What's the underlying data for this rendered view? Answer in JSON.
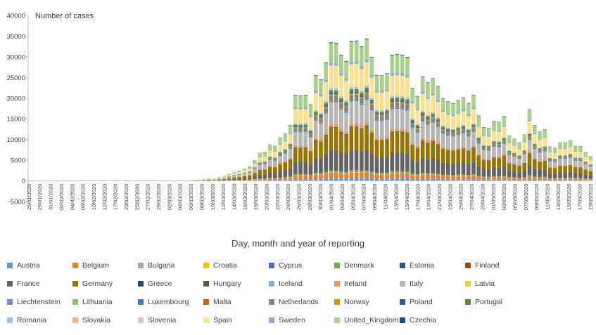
{
  "chart_data": {
    "type": "bar",
    "stacked": true,
    "ylabel": "Number of cases",
    "xlabel": "Day, month and year of reporting",
    "ylim": [
      -5000,
      40000
    ],
    "yticks": [
      "-5000",
      "0",
      "5000",
      "10000",
      "15000",
      "20000",
      "25000",
      "30000",
      "35000",
      "40000"
    ],
    "grid": false,
    "legend_position": "bottom",
    "x_tick_labels": [
      "25/01/2020",
      "29/01/2020",
      "31/01/2020",
      "02/02/2020",
      "04/02/2020",
      "08/02/2020",
      "10/02/2020",
      "12/02/2020",
      "17/02/2020",
      "23/02/2020",
      "25/02/2020",
      "27/02/2020",
      "29/02/2020",
      "02/03/2020",
      "04/03/2020",
      "06/03/2020",
      "08/03/2020",
      "10/03/2020",
      "12/03/2020",
      "14/03/2020",
      "16/03/2020",
      "18/03/2020",
      "20/03/2020",
      "22/03/2020",
      "24/03/2020",
      "26/03/2020",
      "28/03/2020",
      "30/03/2020",
      "01/04/2020",
      "03/04/2020",
      "05/04/2020",
      "07/04/2020",
      "09/04/2020",
      "11/04/2020",
      "13/04/2020",
      "15/04/2020",
      "17/04/2020",
      "19/04/2020",
      "21/04/2020",
      "23/04/2020",
      "25/04/2020",
      "27/04/2020",
      "29/04/2020",
      "01/05/2020",
      "03/05/2020",
      "05/05/2020",
      "07/05/2020",
      "09/05/2020",
      "11/05/2020",
      "13/05/2020",
      "15/05/2020",
      "17/05/2020",
      "19/05/2020"
    ],
    "totals": [
      0,
      0,
      0,
      0,
      0,
      0,
      0,
      0,
      0,
      0,
      0,
      0,
      0,
      0,
      0,
      0,
      0,
      0,
      0,
      0,
      0,
      0,
      0,
      0,
      0,
      0,
      0,
      0,
      0,
      0,
      50,
      150,
      300,
      350,
      500,
      700,
      600,
      900,
      1200,
      1700,
      2200,
      2500,
      3000,
      3500,
      5000,
      6800,
      7000,
      8800,
      8500,
      10500,
      11500,
      13500,
      20800,
      20700,
      20800,
      18500,
      25500,
      24500,
      28700,
      33500,
      33400,
      30500,
      29000,
      33800,
      33900,
      32500,
      34400,
      30000,
      25600,
      25500,
      26000,
      30500,
      30700,
      30500,
      30000,
      22500,
      20500,
      25300,
      23800,
      24800,
      22900,
      20000,
      19200,
      18800,
      19500,
      20200,
      18800,
      20800,
      15800,
      13000,
      12800,
      14500,
      14300,
      15700,
      11000,
      10200,
      9300,
      11200,
      17300,
      13500,
      12000,
      12500,
      8300,
      8000,
      9300,
      9300,
      9800,
      8500,
      8400,
      7000,
      6000
    ],
    "series": [
      {
        "name": "Austria",
        "color": "#5b9bd5"
      },
      {
        "name": "Belgium",
        "color": "#ed7d31"
      },
      {
        "name": "Bulgaria",
        "color": "#a5a5a5"
      },
      {
        "name": "Croatia",
        "color": "#ffc000"
      },
      {
        "name": "Cyprus",
        "color": "#4472c4"
      },
      {
        "name": "Denmark",
        "color": "#70ad47"
      },
      {
        "name": "Estonia",
        "color": "#255e91"
      },
      {
        "name": "Finland",
        "color": "#9e480e"
      },
      {
        "name": "France",
        "color": "#636363"
      },
      {
        "name": "Germany",
        "color": "#997300"
      },
      {
        "name": "Greece",
        "color": "#264478"
      },
      {
        "name": "Hungary",
        "color": "#43682b"
      },
      {
        "name": "Iceland",
        "color": "#7cafdd"
      },
      {
        "name": "Ireland",
        "color": "#f1975a"
      },
      {
        "name": "Italy",
        "color": "#b7b7b7"
      },
      {
        "name": "Latvia",
        "color": "#ffcd33"
      },
      {
        "name": "Liechtenstein",
        "color": "#698ed0"
      },
      {
        "name": "Lithuania",
        "color": "#8cc168"
      },
      {
        "name": "Luxembourg",
        "color": "#327dc2"
      },
      {
        "name": "Malta",
        "color": "#d26012"
      },
      {
        "name": "Netherlands",
        "color": "#848484"
      },
      {
        "name": "Norway",
        "color": "#cc9a00"
      },
      {
        "name": "Poland",
        "color": "#335aa1"
      },
      {
        "name": "Portugal",
        "color": "#5a8a39"
      },
      {
        "name": "Romania",
        "color": "#9dc3e6"
      },
      {
        "name": "Slovakia",
        "color": "#f4b183"
      },
      {
        "name": "Slovenia",
        "color": "#c9c9c9"
      },
      {
        "name": "Spain",
        "color": "#ffe08a"
      },
      {
        "name": "Sweden",
        "color": "#8faadc"
      },
      {
        "name": "United_Kingdom",
        "color": "#a9d18e"
      },
      {
        "name": "Czechia",
        "color": "#1f4e79"
      }
    ],
    "series_shares": [
      {
        "name": "Austria",
        "share": 0.02
      },
      {
        "name": "Belgium",
        "share": 0.04
      },
      {
        "name": "Bulgaria",
        "share": 0.001
      },
      {
        "name": "Croatia",
        "share": 0.002
      },
      {
        "name": "Cyprus",
        "share": 0.001
      },
      {
        "name": "Denmark",
        "share": 0.01
      },
      {
        "name": "Estonia",
        "share": 0.002
      },
      {
        "name": "Finland",
        "share": 0.005
      },
      {
        "name": "France",
        "share": 0.14
      },
      {
        "name": "Germany",
        "share": 0.16
      },
      {
        "name": "Greece",
        "share": 0.003
      },
      {
        "name": "Hungary",
        "share": 0.003
      },
      {
        "name": "Iceland",
        "share": 0.002
      },
      {
        "name": "Ireland",
        "share": 0.02
      },
      {
        "name": "Italy",
        "share": 0.15
      },
      {
        "name": "Latvia",
        "share": 0.001
      },
      {
        "name": "Liechtenstein",
        "share": 0.0005
      },
      {
        "name": "Lithuania",
        "share": 0.002
      },
      {
        "name": "Luxembourg",
        "share": 0.005
      },
      {
        "name": "Malta",
        "share": 0.002
      },
      {
        "name": "Netherlands",
        "share": 0.04
      },
      {
        "name": "Norway",
        "share": 0.01
      },
      {
        "name": "Poland",
        "share": 0.01
      },
      {
        "name": "Portugal",
        "share": 0.02
      },
      {
        "name": "Romania",
        "share": 0.015
      },
      {
        "name": "Slovakia",
        "share": 0.001
      },
      {
        "name": "Slovenia",
        "share": 0.001
      },
      {
        "name": "Spain",
        "share": 0.16
      },
      {
        "name": "Sweden",
        "share": 0.02
      },
      {
        "name": "United_Kingdom",
        "share": 0.14
      },
      {
        "name": "Czechia",
        "share": 0.005
      }
    ]
  }
}
